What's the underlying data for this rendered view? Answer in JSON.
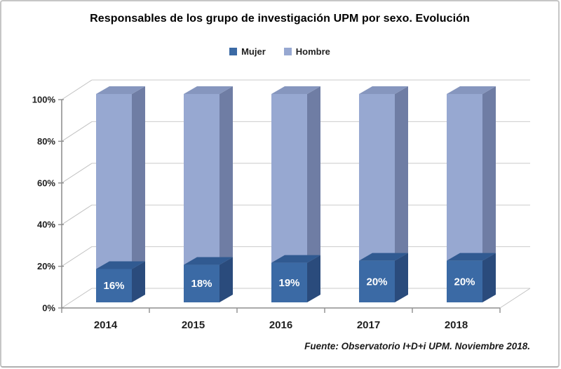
{
  "title": "Responsables de los grupo de investigación UPM por sexo. Evolución",
  "legend": {
    "items": [
      {
        "label": "Mujer",
        "color": "#3b6aa5"
      },
      {
        "label": "Hombre",
        "color": "#97a8d1"
      }
    ]
  },
  "footer": "Fuente: Observatorio I+D+i UPM. Noviembre 2018.",
  "chart_data": {
    "type": "bar",
    "subtype": "3d-100-stacked-column",
    "title": "Responsables de los grupo de investigación UPM por sexo. Evolución",
    "categories": [
      "2014",
      "2015",
      "2016",
      "2017",
      "2018"
    ],
    "series": [
      {
        "name": "Mujer",
        "values": [
          16,
          18,
          19,
          20,
          20
        ],
        "labels": [
          "16%",
          "18%",
          "19%",
          "20%",
          "20%"
        ],
        "color_front": "#3b6aa5",
        "color_side": "#2a4b7c",
        "color_top": "#315a91"
      },
      {
        "name": "Hombre",
        "values": [
          84,
          82,
          81,
          80,
          80
        ],
        "labels": [],
        "color_front": "#97a8d1",
        "color_side": "#6f7da4",
        "color_top": "#8696be"
      }
    ],
    "xlabel": "",
    "ylabel": "",
    "ylim": [
      0,
      100
    ],
    "y_ticks": [
      0,
      20,
      40,
      60,
      80,
      100
    ],
    "y_tick_labels": [
      "0%",
      "20%",
      "40%",
      "60%",
      "80%",
      "100%"
    ],
    "grid": true,
    "legend_position": "top",
    "data_label_color": "#ffffff",
    "axis_color": "#8f8f8f",
    "gridline_color": "#cbcbcb",
    "wall_line_color": "#c2c2c2",
    "tick_label_color": "#1f1f1f"
  }
}
